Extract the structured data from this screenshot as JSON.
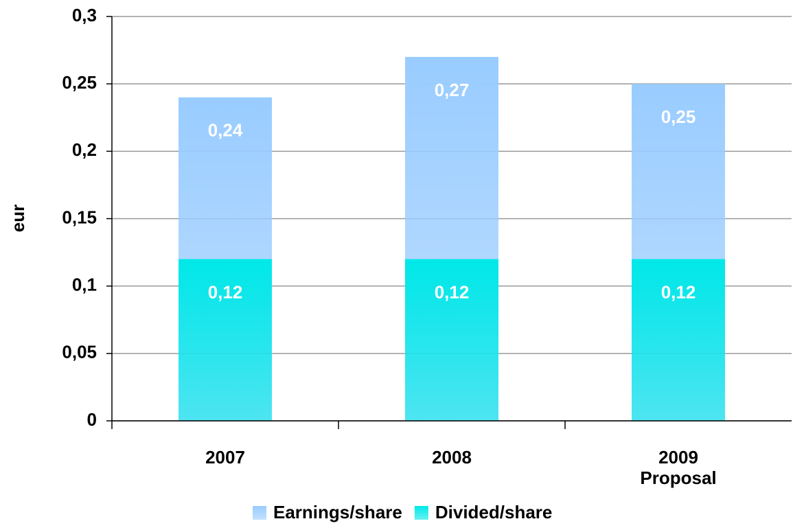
{
  "chart_data": {
    "type": "bar",
    "y_label": "eur",
    "categories": [
      "2007",
      "2008",
      "2009\nProposal"
    ],
    "series": [
      {
        "name": "Earnings/share",
        "color": "#99ccff",
        "values": [
          0.24,
          0.27,
          0.25
        ],
        "value_labels": [
          "0,24",
          "0,27",
          "0,25"
        ]
      },
      {
        "name": "Divided/share",
        "color": "#00e8e8",
        "values": [
          0.12,
          0.12,
          0.12
        ],
        "value_labels": [
          "0,12",
          "0,12",
          "0,12"
        ]
      }
    ],
    "ylim": [
      0,
      0.3
    ],
    "yticks": [
      0,
      {
        "value": 0.05,
        "label": "0,05"
      },
      {
        "value": 0.1,
        "label": "0,1"
      },
      {
        "value": 0.15,
        "label": "0,15"
      },
      {
        "value": 0.2,
        "label": "0,2"
      },
      {
        "value": 0.25,
        "label": "0,25"
      },
      {
        "value": 0.3,
        "label": "0,3"
      }
    ],
    "grid": true
  }
}
